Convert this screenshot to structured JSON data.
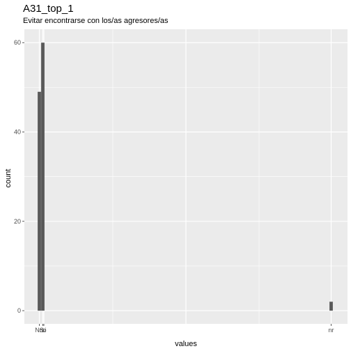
{
  "chart_data": {
    "type": "bar",
    "title": "A31_top_1",
    "subtitle": "Evitar encontrarse con los/as agresores/as",
    "xlabel": "values",
    "ylabel": "count",
    "categories": [
      "NS",
      "no",
      "si",
      "nr"
    ],
    "values": [
      49,
      60,
      0,
      2
    ],
    "ylim": [
      -2.95,
      63
    ],
    "yticks": [
      0,
      20,
      40,
      60
    ],
    "grid": true,
    "colors": {
      "bar": "#595959",
      "panel": "#ebebeb",
      "grid": "#ffffff"
    }
  }
}
